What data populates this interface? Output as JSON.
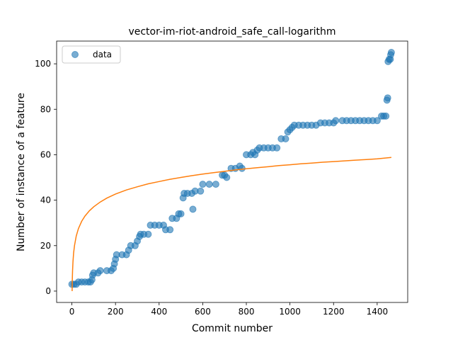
{
  "chart_data": {
    "type": "scatter",
    "title": "vector-im-riot-android_safe_call-logarithm",
    "xlabel": "Commit number",
    "ylabel": "Number of instance of a feature",
    "xlim": [
      -70,
      1540
    ],
    "ylim": [
      -5,
      110
    ],
    "xticks": [
      0,
      200,
      400,
      600,
      800,
      1000,
      1200,
      1400
    ],
    "yticks": [
      0,
      20,
      40,
      60,
      80,
      100
    ],
    "legend": {
      "placement": "upper-left",
      "entries": [
        "data"
      ]
    },
    "colors": {
      "data": "#1f77b4",
      "fit": "#ff7f0e"
    },
    "series": [
      {
        "name": "data",
        "kind": "scatter",
        "points": [
          [
            0,
            3
          ],
          [
            10,
            3
          ],
          [
            20,
            3
          ],
          [
            30,
            4
          ],
          [
            45,
            4
          ],
          [
            60,
            4
          ],
          [
            75,
            4
          ],
          [
            85,
            4
          ],
          [
            92,
            5
          ],
          [
            95,
            7
          ],
          [
            100,
            8
          ],
          [
            120,
            8
          ],
          [
            130,
            9
          ],
          [
            160,
            9
          ],
          [
            180,
            9
          ],
          [
            190,
            10
          ],
          [
            195,
            12
          ],
          [
            200,
            14
          ],
          [
            205,
            16
          ],
          [
            230,
            16
          ],
          [
            250,
            16
          ],
          [
            260,
            18
          ],
          [
            270,
            20
          ],
          [
            290,
            20
          ],
          [
            300,
            22
          ],
          [
            310,
            24
          ],
          [
            315,
            25
          ],
          [
            330,
            25
          ],
          [
            350,
            25
          ],
          [
            360,
            29
          ],
          [
            380,
            29
          ],
          [
            400,
            29
          ],
          [
            420,
            29
          ],
          [
            430,
            27
          ],
          [
            450,
            27
          ],
          [
            460,
            32
          ],
          [
            480,
            32
          ],
          [
            490,
            34
          ],
          [
            500,
            34
          ],
          [
            510,
            41
          ],
          [
            515,
            43
          ],
          [
            530,
            43
          ],
          [
            550,
            43
          ],
          [
            555,
            36
          ],
          [
            565,
            44
          ],
          [
            590,
            44
          ],
          [
            600,
            47
          ],
          [
            630,
            47
          ],
          [
            660,
            47
          ],
          [
            690,
            51
          ],
          [
            700,
            51
          ],
          [
            710,
            50
          ],
          [
            730,
            54
          ],
          [
            750,
            54
          ],
          [
            770,
            55
          ],
          [
            780,
            54
          ],
          [
            800,
            60
          ],
          [
            820,
            60
          ],
          [
            830,
            61
          ],
          [
            840,
            60
          ],
          [
            850,
            62
          ],
          [
            860,
            63
          ],
          [
            880,
            63
          ],
          [
            900,
            63
          ],
          [
            920,
            63
          ],
          [
            940,
            63
          ],
          [
            960,
            67
          ],
          [
            980,
            67
          ],
          [
            990,
            70
          ],
          [
            1000,
            71
          ],
          [
            1010,
            72
          ],
          [
            1020,
            73
          ],
          [
            1040,
            73
          ],
          [
            1060,
            73
          ],
          [
            1080,
            73
          ],
          [
            1100,
            73
          ],
          [
            1120,
            73
          ],
          [
            1140,
            74
          ],
          [
            1160,
            74
          ],
          [
            1180,
            74
          ],
          [
            1200,
            74
          ],
          [
            1210,
            75
          ],
          [
            1240,
            75
          ],
          [
            1260,
            75
          ],
          [
            1280,
            75
          ],
          [
            1300,
            75
          ],
          [
            1320,
            75
          ],
          [
            1340,
            75
          ],
          [
            1360,
            75
          ],
          [
            1380,
            75
          ],
          [
            1400,
            75
          ],
          [
            1420,
            77
          ],
          [
            1430,
            77
          ],
          [
            1440,
            77
          ],
          [
            1445,
            84
          ],
          [
            1448,
            85
          ],
          [
            1450,
            101
          ],
          [
            1455,
            102
          ],
          [
            1460,
            102
          ],
          [
            1462,
            104
          ],
          [
            1465,
            105
          ]
        ]
      },
      {
        "kind": "line",
        "x": [
          1,
          2,
          3,
          5,
          8,
          12,
          20,
          30,
          45,
          60,
          80,
          100,
          130,
          160,
          200,
          250,
          300,
          350,
          400,
          450,
          500,
          550,
          600,
          650,
          700,
          750,
          800,
          850,
          900,
          950,
          1000,
          1050,
          1100,
          1150,
          1200,
          1250,
          1300,
          1350,
          1400,
          1465
        ],
        "y": [
          0,
          5.6,
          8.8,
          12.9,
          16.8,
          20.1,
          24.2,
          27.5,
          30.7,
          33.0,
          35.3,
          37.1,
          39.2,
          40.9,
          42.7,
          44.5,
          45.9,
          47.2,
          48.2,
          49.2,
          50.0,
          50.8,
          51.5,
          52.1,
          52.7,
          53.3,
          53.8,
          54.3,
          54.7,
          55.2,
          55.6,
          56.0,
          56.3,
          56.7,
          57.0,
          57.3,
          57.6,
          57.9,
          58.2,
          58.8
        ]
      }
    ]
  }
}
